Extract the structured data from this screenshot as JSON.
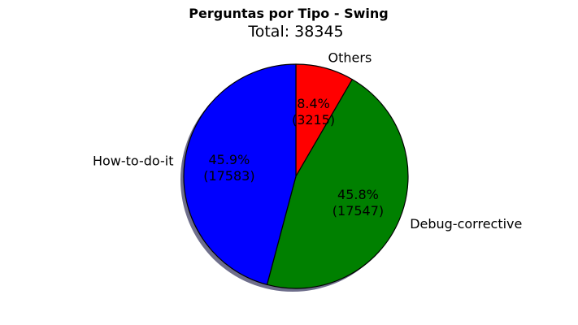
{
  "chart_data": {
    "type": "pie",
    "title": "Perguntas por Tipo - Swing",
    "subtitle": "Total: 38345",
    "total": 38345,
    "slices": [
      {
        "label": "Others",
        "value": 3215,
        "percent_label": "8.4%",
        "count_label": "(3215)",
        "color": "#ff0000"
      },
      {
        "label": "Debug-corrective",
        "value": 17547,
        "percent_label": "45.8%",
        "count_label": "(17547)",
        "color": "#008000"
      },
      {
        "label": "How-to-do-it",
        "value": 17583,
        "percent_label": "45.9%",
        "count_label": "(17583)",
        "color": "#0000ff"
      }
    ],
    "start_angle": "top",
    "direction": "clockwise",
    "shadow": true,
    "edge_color": "#000000",
    "shadow_color": "#555577"
  }
}
